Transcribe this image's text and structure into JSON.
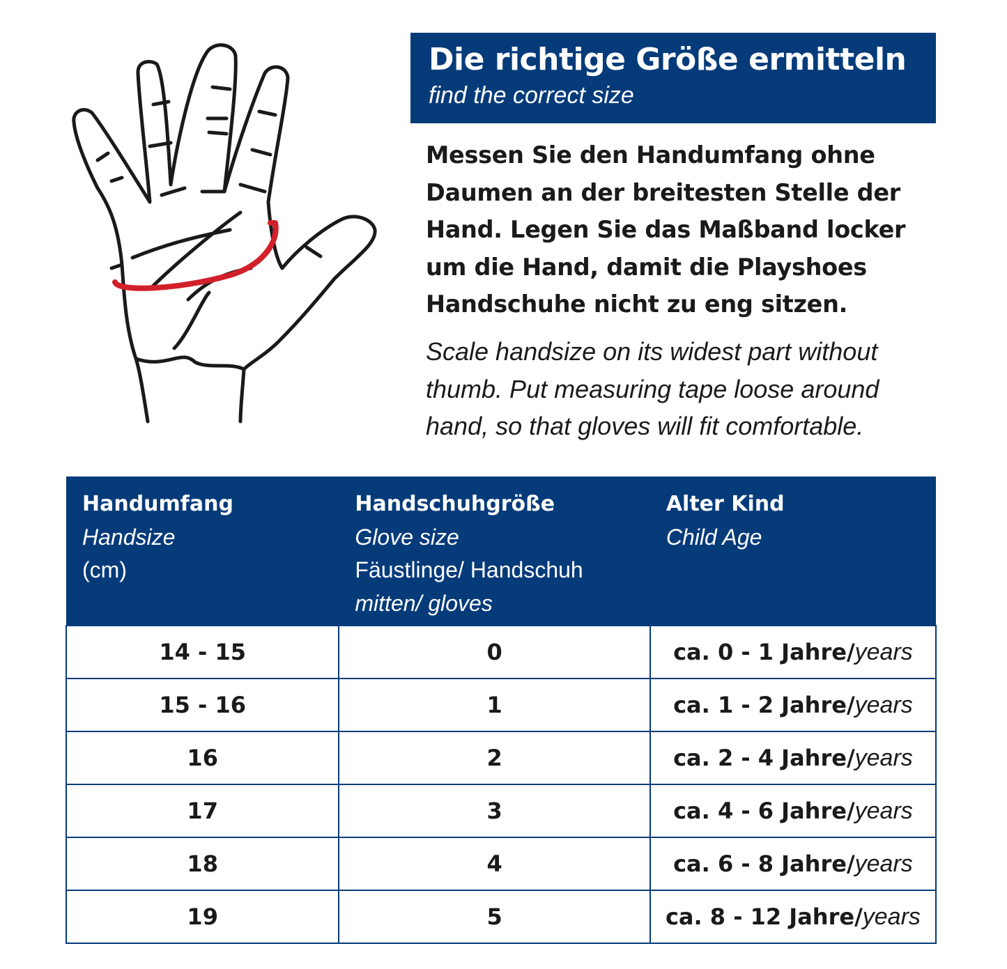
{
  "header": {
    "title": "Die richtige Größe ermitteln",
    "subtitle": "find the correct size"
  },
  "description": {
    "de_lines": [
      "Messen Sie den Handumfang ohne",
      "Daumen an der breitesten Stelle der",
      "Hand. Legen Sie das Maßband locker",
      "um die Hand, damit die Playshoes",
      "Handschuhe nicht zu eng sitzen."
    ],
    "en_lines": [
      "Scale handsize on its widest part without",
      "thumb. Put measuring tape loose around",
      "hand, so that gloves will fit comfortable."
    ]
  },
  "colors": {
    "brand": "#063b7a",
    "tape": "#d2202a"
  },
  "illustration": "hand-with-measuring-tape",
  "table": {
    "columns": [
      {
        "de": "Handumfang",
        "en": "Handsize",
        "extra1": "(cm)",
        "extra2": ""
      },
      {
        "de": "Handschuhgröße",
        "en": "Glove size",
        "extra1": "Fäustlinge/ Handschuh",
        "extra2": "mitten/ gloves"
      },
      {
        "de": "Alter Kind",
        "en": "Child Age",
        "extra1": "",
        "extra2": ""
      }
    ],
    "rows": [
      {
        "handsize": "14 - 15",
        "glove": "0",
        "age": "ca. 0 - 1 Jahre/",
        "age_en": "years"
      },
      {
        "handsize": "15 - 16",
        "glove": "1",
        "age": "ca. 1 - 2 Jahre/",
        "age_en": "years"
      },
      {
        "handsize": "16",
        "glove": "2",
        "age": "ca. 2 - 4 Jahre/",
        "age_en": "years"
      },
      {
        "handsize": "17",
        "glove": "3",
        "age": "ca. 4 - 6 Jahre/",
        "age_en": "years"
      },
      {
        "handsize": "18",
        "glove": "4",
        "age": "ca. 6 - 8 Jahre/",
        "age_en": "years"
      },
      {
        "handsize": "19",
        "glove": "5",
        "age": "ca. 8 - 12 Jahre/",
        "age_en": "years"
      }
    ]
  }
}
